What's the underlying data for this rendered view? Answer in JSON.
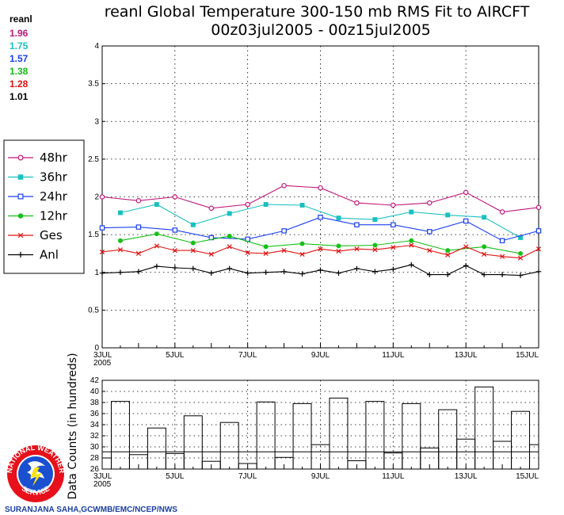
{
  "header": {
    "title_line1": "reanl Global Temperature 300-150 mb RMS Fit to AIRCFT",
    "title_line2": "00z03jul2005 - 00z15jul2005"
  },
  "sidebar": {
    "label": "reanl",
    "values": [
      {
        "text": "1.96",
        "color": "#c0187a"
      },
      {
        "text": "1.75",
        "color": "#19c0c0"
      },
      {
        "text": "1.57",
        "color": "#1a3ff0"
      },
      {
        "text": "1.38",
        "color": "#16c016"
      },
      {
        "text": "1.28",
        "color": "#e01010"
      },
      {
        "text": "1.01",
        "color": "#000000"
      }
    ]
  },
  "legend": {
    "placement": "left",
    "entries": [
      "48hr",
      "36hr",
      "24hr",
      "12hr",
      "Ges",
      "Anl"
    ]
  },
  "credit": "SURANJANA SAHA,GCWMB/EMC/NCEP/NWS",
  "logo": {
    "text_top": "NATIONAL WEATHER",
    "text_bottom": "SERVICE"
  },
  "chart_data": [
    {
      "type": "line",
      "x_ticks": [
        3,
        5,
        7,
        9,
        11,
        13,
        15
      ],
      "x_tick_labels": [
        "3JUL",
        "5JUL",
        "7JUL",
        "9JUL",
        "11JUL",
        "13JUL",
        "15JUL"
      ],
      "x_year_label": "2005",
      "xlim": [
        3,
        15
      ],
      "ylim": [
        0,
        4
      ],
      "y_ticks": [
        0,
        0.5,
        1,
        1.5,
        2,
        2.5,
        3,
        3.5,
        4
      ],
      "y_tick_labels": [
        "0",
        "0.5",
        "1",
        "1.5",
        "2",
        "2.5",
        "3",
        "3.5",
        "4"
      ],
      "grid": true,
      "series": [
        {
          "name": "48hr",
          "color": "#c0187a",
          "marker": "circle-open",
          "x": [
            3,
            4,
            5,
            6,
            7,
            8,
            9,
            10,
            11,
            12,
            13,
            14,
            15
          ],
          "values": [
            2.0,
            1.95,
            2.0,
            1.85,
            1.9,
            2.15,
            2.12,
            1.92,
            1.89,
            1.92,
            2.06,
            1.8,
            1.86
          ]
        },
        {
          "name": "36hr",
          "color": "#19c0c0",
          "marker": "square-filled",
          "x": [
            3.5,
            4.5,
            5.5,
            6.5,
            7.5,
            8.5,
            9.5,
            10.5,
            11.5,
            12.5,
            13.5,
            14.5
          ],
          "values": [
            1.79,
            1.9,
            1.63,
            1.78,
            1.9,
            1.89,
            1.72,
            1.7,
            1.8,
            1.76,
            1.73,
            1.46
          ]
        },
        {
          "name": "24hr",
          "color": "#1a3ff0",
          "marker": "square-open",
          "x": [
            3,
            4,
            5,
            6,
            7,
            8,
            9,
            10,
            11,
            12,
            13,
            14,
            15
          ],
          "values": [
            1.59,
            1.6,
            1.56,
            1.46,
            1.44,
            1.55,
            1.73,
            1.63,
            1.63,
            1.54,
            1.68,
            1.42,
            1.55
          ]
        },
        {
          "name": "12hr",
          "color": "#16c016",
          "marker": "circle-filled",
          "x": [
            3.5,
            4.5,
            5.5,
            6.5,
            7.5,
            8.5,
            9.5,
            10.5,
            11.5,
            12.5,
            13.5,
            14.5
          ],
          "values": [
            1.42,
            1.51,
            1.39,
            1.48,
            1.34,
            1.38,
            1.35,
            1.36,
            1.42,
            1.29,
            1.34,
            1.25
          ]
        },
        {
          "name": "Ges",
          "color": "#e01010",
          "marker": "x",
          "x": [
            3,
            3.5,
            4,
            4.5,
            5,
            5.5,
            6,
            6.5,
            7,
            7.5,
            8,
            8.5,
            9,
            9.5,
            10,
            10.5,
            11,
            11.5,
            12,
            12.5,
            13,
            13.5,
            14,
            14.5,
            15
          ],
          "values": [
            1.27,
            1.3,
            1.25,
            1.35,
            1.29,
            1.29,
            1.24,
            1.34,
            1.26,
            1.25,
            1.29,
            1.24,
            1.31,
            1.28,
            1.31,
            1.3,
            1.33,
            1.36,
            1.29,
            1.23,
            1.34,
            1.24,
            1.21,
            1.19,
            1.31
          ]
        },
        {
          "name": "Anl",
          "color": "#000000",
          "marker": "plus",
          "x": [
            3,
            3.5,
            4,
            4.5,
            5,
            5.5,
            6,
            6.5,
            7,
            7.5,
            8,
            8.5,
            9,
            9.5,
            10,
            10.5,
            11,
            11.5,
            12,
            12.5,
            13,
            13.5,
            14,
            14.5,
            15
          ],
          "values": [
            0.99,
            1.0,
            1.01,
            1.08,
            1.06,
            1.05,
            0.99,
            1.05,
            0.99,
            1.0,
            1.01,
            0.98,
            1.03,
            0.99,
            1.05,
            1.01,
            1.04,
            1.1,
            0.97,
            0.97,
            1.09,
            0.97,
            0.97,
            0.96,
            1.01
          ]
        }
      ]
    },
    {
      "type": "bar",
      "ylabel": "Data Counts (in hundreds)",
      "x_ticks": [
        3,
        5,
        7,
        9,
        11,
        13,
        15
      ],
      "x_tick_labels": [
        "3JUL",
        "5JUL",
        "7JUL",
        "9JUL",
        "11JUL",
        "13JUL",
        "15JUL"
      ],
      "x_year_label": "2005",
      "xlim": [
        3,
        15
      ],
      "ylim": [
        26,
        42
      ],
      "y_ticks": [
        26,
        28,
        30,
        32,
        34,
        36,
        38,
        40,
        42
      ],
      "y_tick_labels": [
        "26",
        "28",
        "30",
        "32",
        "34",
        "36",
        "38",
        "40",
        "42"
      ],
      "reference_line": 29.1,
      "x": [
        3,
        3.5,
        4,
        4.5,
        5,
        5.5,
        6,
        6.5,
        7,
        7.5,
        8,
        8.5,
        9,
        9.5,
        10,
        10.5,
        11,
        11.5,
        12,
        12.5,
        13,
        13.5,
        14,
        14.5,
        15
      ],
      "values": [
        28.0,
        38.2,
        28.6,
        33.4,
        28.8,
        35.6,
        27.4,
        34.4,
        27.0,
        38.1,
        28.1,
        37.8,
        30.4,
        38.8,
        27.5,
        38.2,
        28.9,
        37.8,
        29.8,
        36.7,
        31.4,
        40.8,
        31.0,
        36.4,
        30.4
      ]
    }
  ]
}
